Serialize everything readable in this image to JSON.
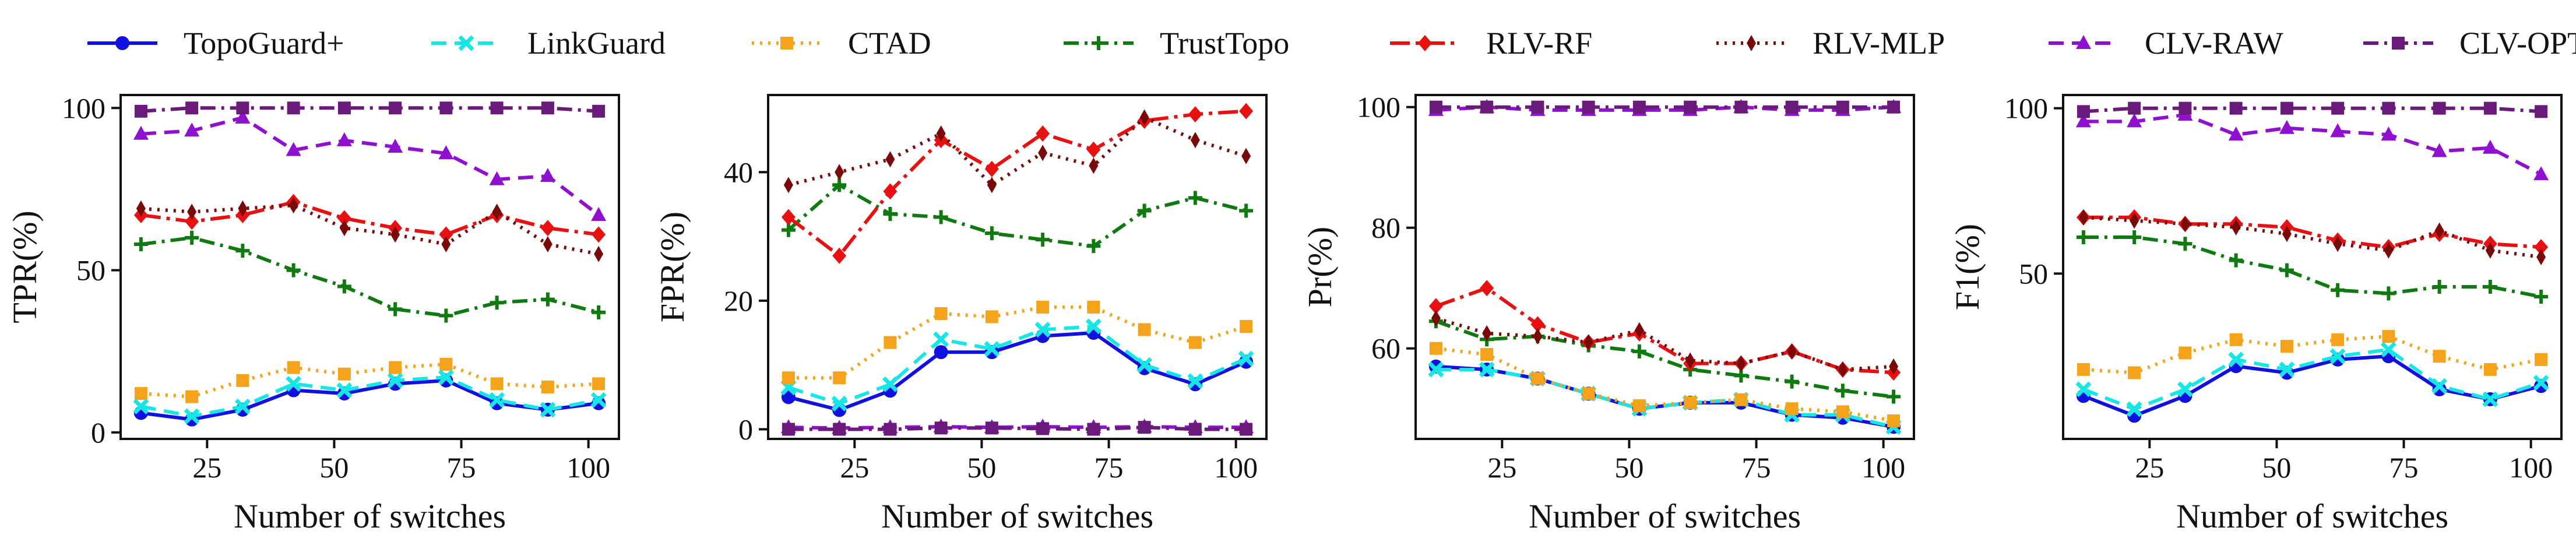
{
  "legend": [
    {
      "name": "TopoGuard+",
      "color": "#1010e0",
      "marker": "circle",
      "dash": "solid"
    },
    {
      "name": "LinkGuard",
      "color": "#16e6e6",
      "marker": "x",
      "dash": "dashed"
    },
    {
      "name": "CTAD",
      "color": "#f5a31a",
      "marker": "square",
      "dash": "dotted"
    },
    {
      "name": "TrustTopo",
      "color": "#0f7a0f",
      "marker": "plus",
      "dash": "dashdot"
    },
    {
      "name": "RLV-RF",
      "color": "#e81010",
      "marker": "diamond",
      "dash": "dashdotlong"
    },
    {
      "name": "RLV-MLP",
      "color": "#7a0a0a",
      "marker": "thin-diamond",
      "dash": "dotted"
    },
    {
      "name": "CLV-RAW",
      "color": "#9010d0",
      "marker": "triangle",
      "dash": "dashed"
    },
    {
      "name": "CLV-OPT",
      "color": "#6a1a7a",
      "marker": "square",
      "dash": "dashdot"
    }
  ],
  "chart_data": [
    {
      "type": "line",
      "ylabel": "TPR(%)",
      "xlabel": "Number of switches",
      "x": [
        12,
        22,
        32,
        42,
        52,
        62,
        72,
        82,
        92,
        102
      ],
      "xlim": [
        8,
        106
      ],
      "ylim": [
        -2,
        104
      ],
      "xticks": [
        25,
        50,
        75,
        100
      ],
      "yticks": [
        0,
        50,
        100
      ],
      "series": [
        {
          "name": "TopoGuard+",
          "values": [
            6,
            4,
            7,
            13,
            12,
            15,
            16,
            9,
            7,
            9
          ]
        },
        {
          "name": "LinkGuard",
          "values": [
            8,
            5,
            8,
            15,
            13,
            16,
            17,
            10,
            7,
            10
          ]
        },
        {
          "name": "CTAD",
          "values": [
            12,
            11,
            16,
            20,
            18,
            20,
            21,
            15,
            14,
            15
          ]
        },
        {
          "name": "TrustTopo",
          "values": [
            58,
            60,
            56,
            50,
            45,
            38,
            36,
            40,
            41,
            37
          ]
        },
        {
          "name": "RLV-RF",
          "values": [
            67,
            65,
            67,
            71,
            66,
            63,
            61,
            67,
            63,
            61
          ]
        },
        {
          "name": "RLV-MLP",
          "values": [
            69,
            68,
            69,
            70,
            63,
            61,
            58,
            68,
            58,
            55
          ]
        },
        {
          "name": "CLV-RAW",
          "values": [
            92,
            93,
            97,
            87,
            90,
            88,
            86,
            78,
            79,
            67
          ]
        },
        {
          "name": "CLV-OPT",
          "values": [
            99,
            100,
            100,
            100,
            100,
            100,
            100,
            100,
            100,
            99
          ]
        }
      ]
    },
    {
      "type": "line",
      "ylabel": "FPR(%)",
      "xlabel": "Number of switches",
      "x": [
        12,
        22,
        32,
        42,
        52,
        62,
        72,
        82,
        92,
        102
      ],
      "xlim": [
        8,
        106
      ],
      "ylim": [
        -1.5,
        52
      ],
      "xticks": [
        25,
        50,
        75,
        100
      ],
      "yticks": [
        0,
        20,
        40
      ],
      "series": [
        {
          "name": "TopoGuard+",
          "values": [
            5,
            3,
            6,
            12,
            12,
            14.5,
            15,
            9.5,
            7,
            10.5
          ]
        },
        {
          "name": "LinkGuard",
          "values": [
            6.5,
            4,
            7,
            14,
            12.5,
            15.5,
            16,
            10,
            7.5,
            11
          ]
        },
        {
          "name": "CTAD",
          "values": [
            8,
            8,
            13.5,
            18,
            17.5,
            19,
            19,
            15.5,
            13.5,
            16
          ]
        },
        {
          "name": "TrustTopo",
          "values": [
            31,
            38,
            33.5,
            33,
            30.5,
            29.5,
            28.5,
            34,
            36,
            34
          ]
        },
        {
          "name": "RLV-RF",
          "values": [
            33,
            27,
            37,
            45,
            40.5,
            46,
            43.5,
            48,
            49,
            49.5
          ]
        },
        {
          "name": "RLV-MLP",
          "values": [
            38,
            40,
            42,
            46,
            38,
            43,
            41,
            48.5,
            45,
            42.5
          ]
        },
        {
          "name": "CLV-RAW",
          "values": [
            0.3,
            0.2,
            0.3,
            0.4,
            0.3,
            0.4,
            0.3,
            0.4,
            0.3,
            0.3
          ]
        },
        {
          "name": "CLV-OPT",
          "values": [
            0,
            0,
            0,
            0.2,
            0.2,
            0.1,
            0,
            0.3,
            0,
            0
          ]
        }
      ]
    },
    {
      "type": "line",
      "ylabel": "Pr(%)",
      "xlabel": "Number of switches",
      "x": [
        12,
        22,
        32,
        42,
        52,
        62,
        72,
        82,
        92,
        102
      ],
      "xlim": [
        8,
        106
      ],
      "ylim": [
        45,
        102
      ],
      "xticks": [
        25,
        50,
        75,
        100
      ],
      "yticks": [
        60,
        80,
        100
      ],
      "series": [
        {
          "name": "TopoGuard+",
          "values": [
            57,
            56.5,
            55,
            52.5,
            50,
            51,
            51,
            49,
            48.5,
            47
          ]
        },
        {
          "name": "LinkGuard",
          "values": [
            56.5,
            56.5,
            55,
            52.5,
            50,
            51,
            51.5,
            49,
            49,
            47
          ]
        },
        {
          "name": "CTAD",
          "values": [
            60,
            59,
            55,
            52.5,
            50.5,
            51,
            51.5,
            50,
            49.5,
            48
          ]
        },
        {
          "name": "TrustTopo",
          "values": [
            64.5,
            61.5,
            62,
            60.5,
            59.5,
            56.5,
            55.5,
            54.5,
            53,
            52
          ]
        },
        {
          "name": "RLV-RF",
          "values": [
            67,
            70,
            64,
            61,
            62.5,
            57.5,
            57.5,
            59.5,
            56.5,
            56
          ]
        },
        {
          "name": "RLV-MLP",
          "values": [
            65,
            62.5,
            62,
            61,
            63,
            58,
            57.5,
            59.5,
            56.5,
            57
          ]
        },
        {
          "name": "CLV-RAW",
          "values": [
            99.5,
            100,
            99.5,
            99.5,
            99.5,
            99.5,
            100,
            99.5,
            99.5,
            100
          ]
        },
        {
          "name": "CLV-OPT",
          "values": [
            100,
            100,
            100,
            100,
            100,
            100,
            100,
            100,
            100,
            100
          ]
        }
      ]
    },
    {
      "type": "line",
      "ylabel": "F1(%)",
      "xlabel": "Number of switches",
      "x": [
        12,
        22,
        32,
        42,
        52,
        62,
        72,
        82,
        92,
        102
      ],
      "xlim": [
        8,
        106
      ],
      "ylim": [
        0,
        104
      ],
      "xticks": [
        25,
        50,
        75,
        100
      ],
      "yticks": [
        50,
        100
      ],
      "series": [
        {
          "name": "TopoGuard+",
          "values": [
            13,
            7,
            13,
            22,
            20,
            24,
            25,
            15,
            12,
            16
          ]
        },
        {
          "name": "LinkGuard",
          "values": [
            15,
            9,
            15,
            24,
            21,
            25,
            27,
            16,
            12,
            17
          ]
        },
        {
          "name": "CTAD",
          "values": [
            21,
            20,
            26,
            30,
            28,
            30,
            31,
            25,
            21,
            24
          ]
        },
        {
          "name": "TrustTopo",
          "values": [
            61,
            61,
            59,
            54,
            51,
            45,
            44,
            46,
            46,
            43
          ]
        },
        {
          "name": "RLV-RF",
          "values": [
            67,
            67,
            65,
            65,
            64,
            60,
            58,
            62,
            59,
            58
          ]
        },
        {
          "name": "RLV-MLP",
          "values": [
            67,
            66,
            65,
            64,
            62,
            59,
            57,
            63,
            57,
            55
          ]
        },
        {
          "name": "CLV-RAW",
          "values": [
            96,
            96,
            98,
            92,
            94,
            93,
            92,
            87,
            88,
            80
          ]
        },
        {
          "name": "CLV-OPT",
          "values": [
            99,
            100,
            100,
            100,
            100,
            100,
            100,
            100,
            100,
            99
          ]
        }
      ]
    }
  ]
}
